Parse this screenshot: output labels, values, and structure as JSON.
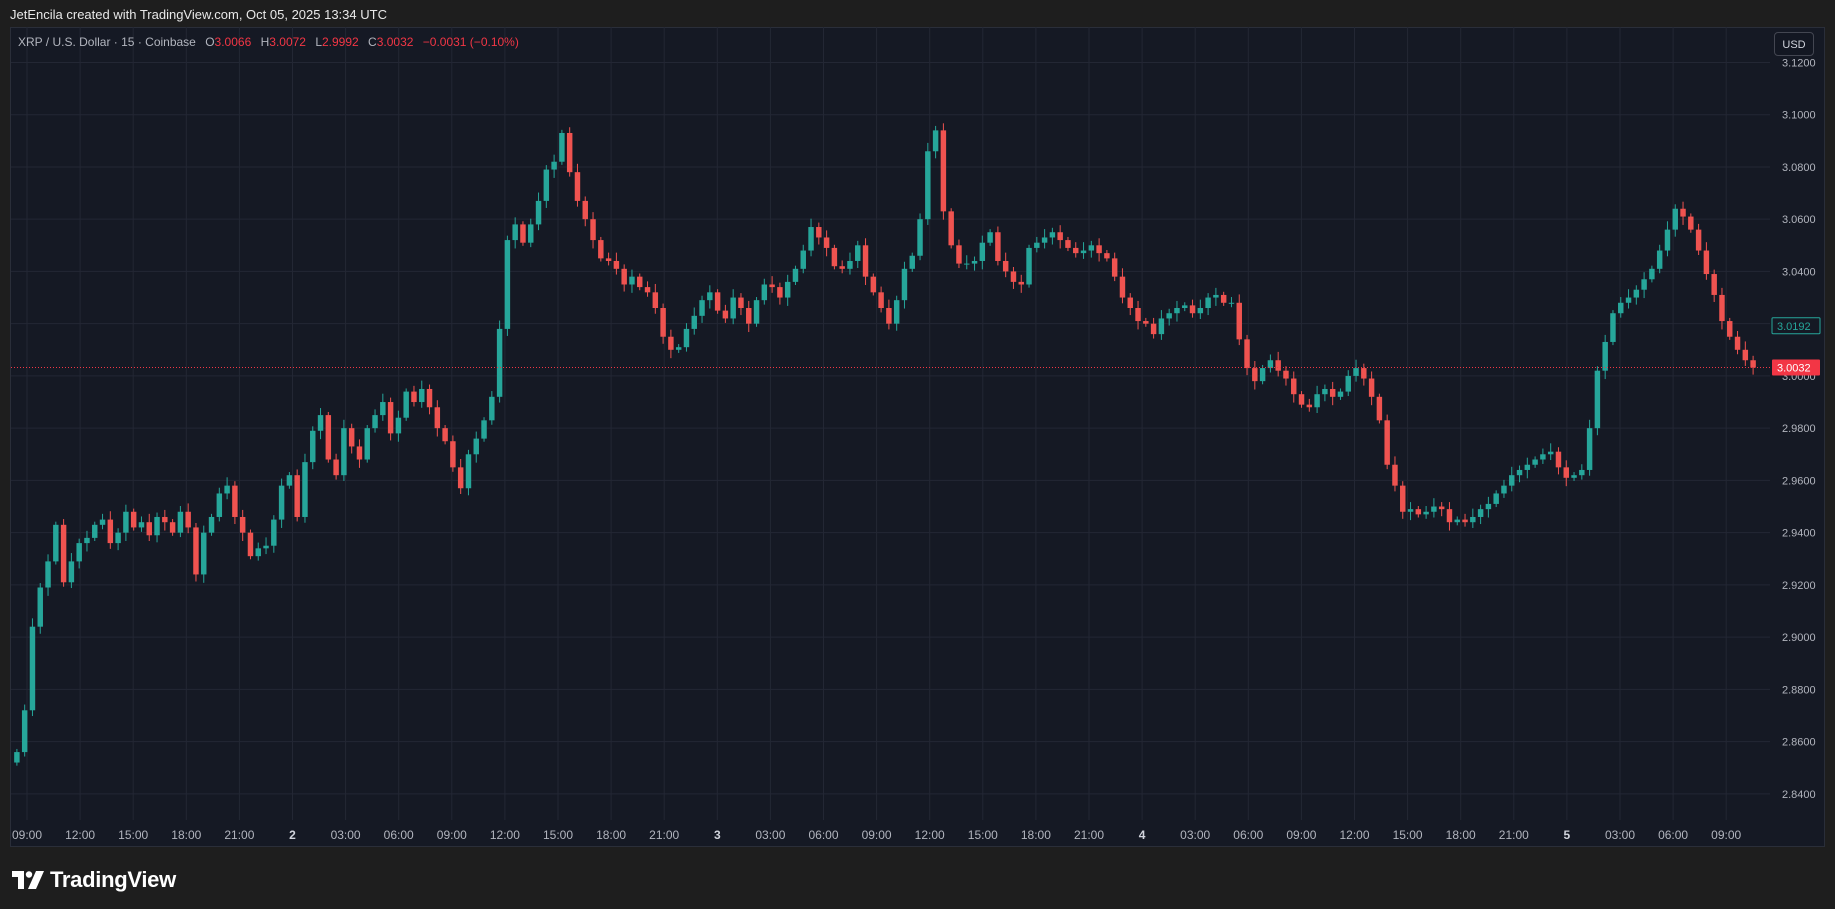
{
  "header": {
    "caption": "JetEncila created with TradingView.com, Oct 05, 2025 13:34 UTC"
  },
  "legend": {
    "symbol": "XRP / U.S. Dollar · 15 · Coinbase",
    "open_label": "O",
    "open": "3.0066",
    "high_label": "H",
    "high": "3.0072",
    "low_label": "L",
    "low": "2.9992",
    "close_label": "C",
    "close": "3.0032",
    "change": "−0.0031 (−0.10%)"
  },
  "currency_button": "USD",
  "brand": {
    "name": "TradingView",
    "logo_icon": "tradingview-logo-icon"
  },
  "colors": {
    "up": "#26a69a",
    "down": "#ef5350",
    "background": "#151924",
    "grid": "#232734",
    "text": "#b2b5be",
    "price_line": "#f23645"
  },
  "chart_data": {
    "type": "candlestick",
    "symbol": "XRP / U.S. Dollar",
    "interval": "15",
    "exchange": "Coinbase",
    "ylim": [
      2.83,
      3.124
    ],
    "y_ticks": [
      "2.8400",
      "2.8600",
      "2.8800",
      "2.9000",
      "2.9200",
      "2.9400",
      "2.9600",
      "2.9800",
      "3.0000",
      "3.0200",
      "3.0400",
      "3.0600",
      "3.0800",
      "3.1000",
      "3.1200"
    ],
    "x_ticks": [
      "09:00",
      "12:00",
      "15:00",
      "18:00",
      "21:00",
      "2",
      "03:00",
      "06:00",
      "09:00",
      "12:00",
      "15:00",
      "18:00",
      "21:00",
      "3",
      "03:00",
      "06:00",
      "09:00",
      "12:00",
      "15:00",
      "18:00",
      "21:00",
      "4",
      "03:00",
      "06:00",
      "09:00",
      "12:00",
      "15:00",
      "18:00",
      "21:00",
      "5",
      "03:00",
      "06:00",
      "09:00"
    ],
    "x_bold_labels": [
      "2",
      "3",
      "4",
      "5"
    ],
    "grid": true,
    "last_price": "3.0032",
    "marker_price": "3.0192",
    "closes": [
      2.856,
      2.872,
      2.904,
      2.919,
      2.929,
      2.943,
      2.921,
      2.929,
      2.936,
      2.938,
      2.943,
      2.945,
      2.936,
      2.94,
      2.948,
      2.942,
      2.944,
      2.939,
      2.946,
      2.944,
      2.94,
      2.948,
      2.942,
      2.924,
      2.94,
      2.946,
      2.955,
      2.958,
      2.946,
      2.94,
      2.931,
      2.934,
      2.935,
      2.945,
      2.958,
      2.962,
      2.946,
      2.967,
      2.979,
      2.985,
      2.968,
      2.962,
      2.98,
      2.973,
      2.968,
      2.98,
      2.985,
      2.99,
      2.978,
      2.984,
      2.994,
      2.99,
      2.995,
      2.988,
      2.98,
      2.975,
      2.965,
      2.957,
      2.97,
      2.976,
      2.983,
      2.992,
      3.018,
      3.052,
      3.058,
      3.051,
      3.058,
      3.067,
      3.079,
      3.082,
      3.093,
      3.078,
      3.067,
      3.06,
      3.052,
      3.045,
      3.044,
      3.041,
      3.035,
      3.038,
      3.034,
      3.032,
      3.026,
      3.015,
      3.01,
      3.011,
      3.018,
      3.023,
      3.029,
      3.032,
      3.025,
      3.022,
      3.03,
      3.026,
      3.02,
      3.029,
      3.035,
      3.034,
      3.03,
      3.036,
      3.041,
      3.048,
      3.057,
      3.053,
      3.049,
      3.042,
      3.041,
      3.044,
      3.05,
      3.038,
      3.032,
      3.026,
      3.02,
      3.029,
      3.041,
      3.046,
      3.06,
      3.086,
      3.094,
      3.063,
      3.05,
      3.043,
      3.043,
      3.044,
      3.051,
      3.055,
      3.044,
      3.04,
      3.036,
      3.035,
      3.049,
      3.051,
      3.053,
      3.055,
      3.052,
      3.049,
      3.047,
      3.048,
      3.05,
      3.047,
      3.045,
      3.038,
      3.03,
      3.026,
      3.021,
      3.02,
      3.016,
      3.022,
      3.024,
      3.026,
      3.027,
      3.024,
      3.026,
      3.03,
      3.031,
      3.028,
      3.028,
      3.014,
      3.003,
      2.998,
      3.003,
      3.006,
      3.002,
      2.999,
      2.993,
      2.989,
      2.988,
      2.993,
      2.995,
      2.992,
      2.994,
      3.0,
      3.003,
      2.999,
      2.992,
      2.983,
      2.966,
      2.958,
      2.948,
      2.949,
      2.947,
      2.948,
      2.95,
      2.949,
      2.944,
      2.945,
      2.944,
      2.946,
      2.949,
      2.951,
      2.955,
      2.958,
      2.962,
      2.964,
      2.966,
      2.968,
      2.97,
      2.971,
      2.965,
      2.961,
      2.962,
      2.964,
      2.98,
      3.002,
      3.013,
      3.024,
      3.028,
      3.03,
      3.033,
      3.037,
      3.041,
      3.048,
      3.056,
      3.064,
      3.061,
      3.056,
      3.048,
      3.039,
      3.031,
      3.021,
      3.015,
      3.01,
      3.006,
      3.0032
    ]
  }
}
